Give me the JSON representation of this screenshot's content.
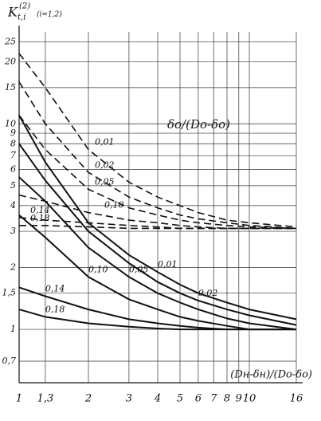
{
  "chart_data": {
    "type": "line",
    "y_label": {
      "symbol": "K",
      "subscript": "t,i",
      "superscript": "(2)",
      "note": "(i=1,2)"
    },
    "x_label": "(Dн-δн)/(Dо-δо)",
    "legend_title": "δо/(Dо-δо)",
    "log_x": true,
    "log_y": true,
    "grid": true,
    "x": [
      1,
      1.3,
      2,
      3,
      4,
      5,
      6,
      8,
      10,
      16
    ],
    "xlim": [
      1,
      16
    ],
    "xticks": [
      1,
      {
        "value": 1.3,
        "label": "1,3"
      },
      2,
      3,
      4,
      5,
      6,
      7,
      8,
      9,
      10,
      16
    ],
    "ylim": [
      0.55,
      28
    ],
    "yticks": [
      {
        "value": 0.7,
        "label": "0,7"
      },
      1,
      {
        "value": 1.5,
        "label": "1,5"
      },
      2,
      3,
      4,
      5,
      6,
      7,
      8,
      9,
      10,
      15,
      20,
      25
    ],
    "series": [
      {
        "name": "0,01",
        "color": "#111111",
        "dashed": false,
        "values": [
          11,
          6.5,
          3.3,
          2.3,
          1.9,
          1.65,
          1.5,
          1.35,
          1.25,
          1.12
        ]
      },
      {
        "name": "0,02",
        "color": "#111111",
        "dashed": false,
        "values": [
          8,
          5.3,
          3.0,
          2.1,
          1.7,
          1.5,
          1.38,
          1.25,
          1.17,
          1.05
        ]
      },
      {
        "name": "0,05",
        "color": "#111111",
        "dashed": false,
        "values": [
          5.5,
          4.2,
          2.5,
          1.8,
          1.5,
          1.35,
          1.25,
          1.13,
          1.07,
          1.0
        ]
      },
      {
        "name": "0,10",
        "color": "#111111",
        "dashed": false,
        "values": [
          3.6,
          2.8,
          1.8,
          1.4,
          1.25,
          1.15,
          1.1,
          1.04,
          1.0,
          1.0
        ]
      },
      {
        "name": "0,14",
        "color": "#111111",
        "dashed": false,
        "values": [
          1.6,
          1.45,
          1.25,
          1.12,
          1.07,
          1.04,
          1.02,
          1.0,
          1.0,
          1.0
        ]
      },
      {
        "name": "0,18",
        "color": "#111111",
        "dashed": false,
        "values": [
          1.25,
          1.15,
          1.07,
          1.03,
          1.01,
          1.0,
          1.0,
          1.0,
          1.0,
          1.0
        ]
      },
      {
        "name": "0,01",
        "color": "#111111",
        "dashed": true,
        "values": [
          22,
          15,
          7.5,
          5.2,
          4.4,
          4.0,
          3.7,
          3.4,
          3.3,
          3.15
        ]
      },
      {
        "name": "0,02",
        "color": "#111111",
        "dashed": true,
        "values": [
          16,
          10,
          5.8,
          4.4,
          3.9,
          3.6,
          3.45,
          3.3,
          3.2,
          3.1
        ]
      },
      {
        "name": "0,05",
        "color": "#111111",
        "dashed": true,
        "values": [
          11,
          7.5,
          4.8,
          3.9,
          3.6,
          3.4,
          3.3,
          3.2,
          3.15,
          3.1
        ]
      },
      {
        "name": "0,10",
        "color": "#111111",
        "dashed": true,
        "values": [
          4.5,
          4.2,
          3.7,
          3.4,
          3.3,
          3.2,
          3.15,
          3.1,
          3.1,
          3.1
        ]
      },
      {
        "name": "0,14",
        "color": "#111111",
        "dashed": true,
        "values": [
          3.5,
          3.4,
          3.3,
          3.2,
          3.15,
          3.1,
          3.1,
          3.1,
          3.1,
          3.1
        ]
      },
      {
        "name": "0,18",
        "color": "#111111",
        "dashed": true,
        "values": [
          3.2,
          3.2,
          3.15,
          3.1,
          3.1,
          3.1,
          3.1,
          3.1,
          3.1,
          3.1
        ]
      }
    ]
  }
}
